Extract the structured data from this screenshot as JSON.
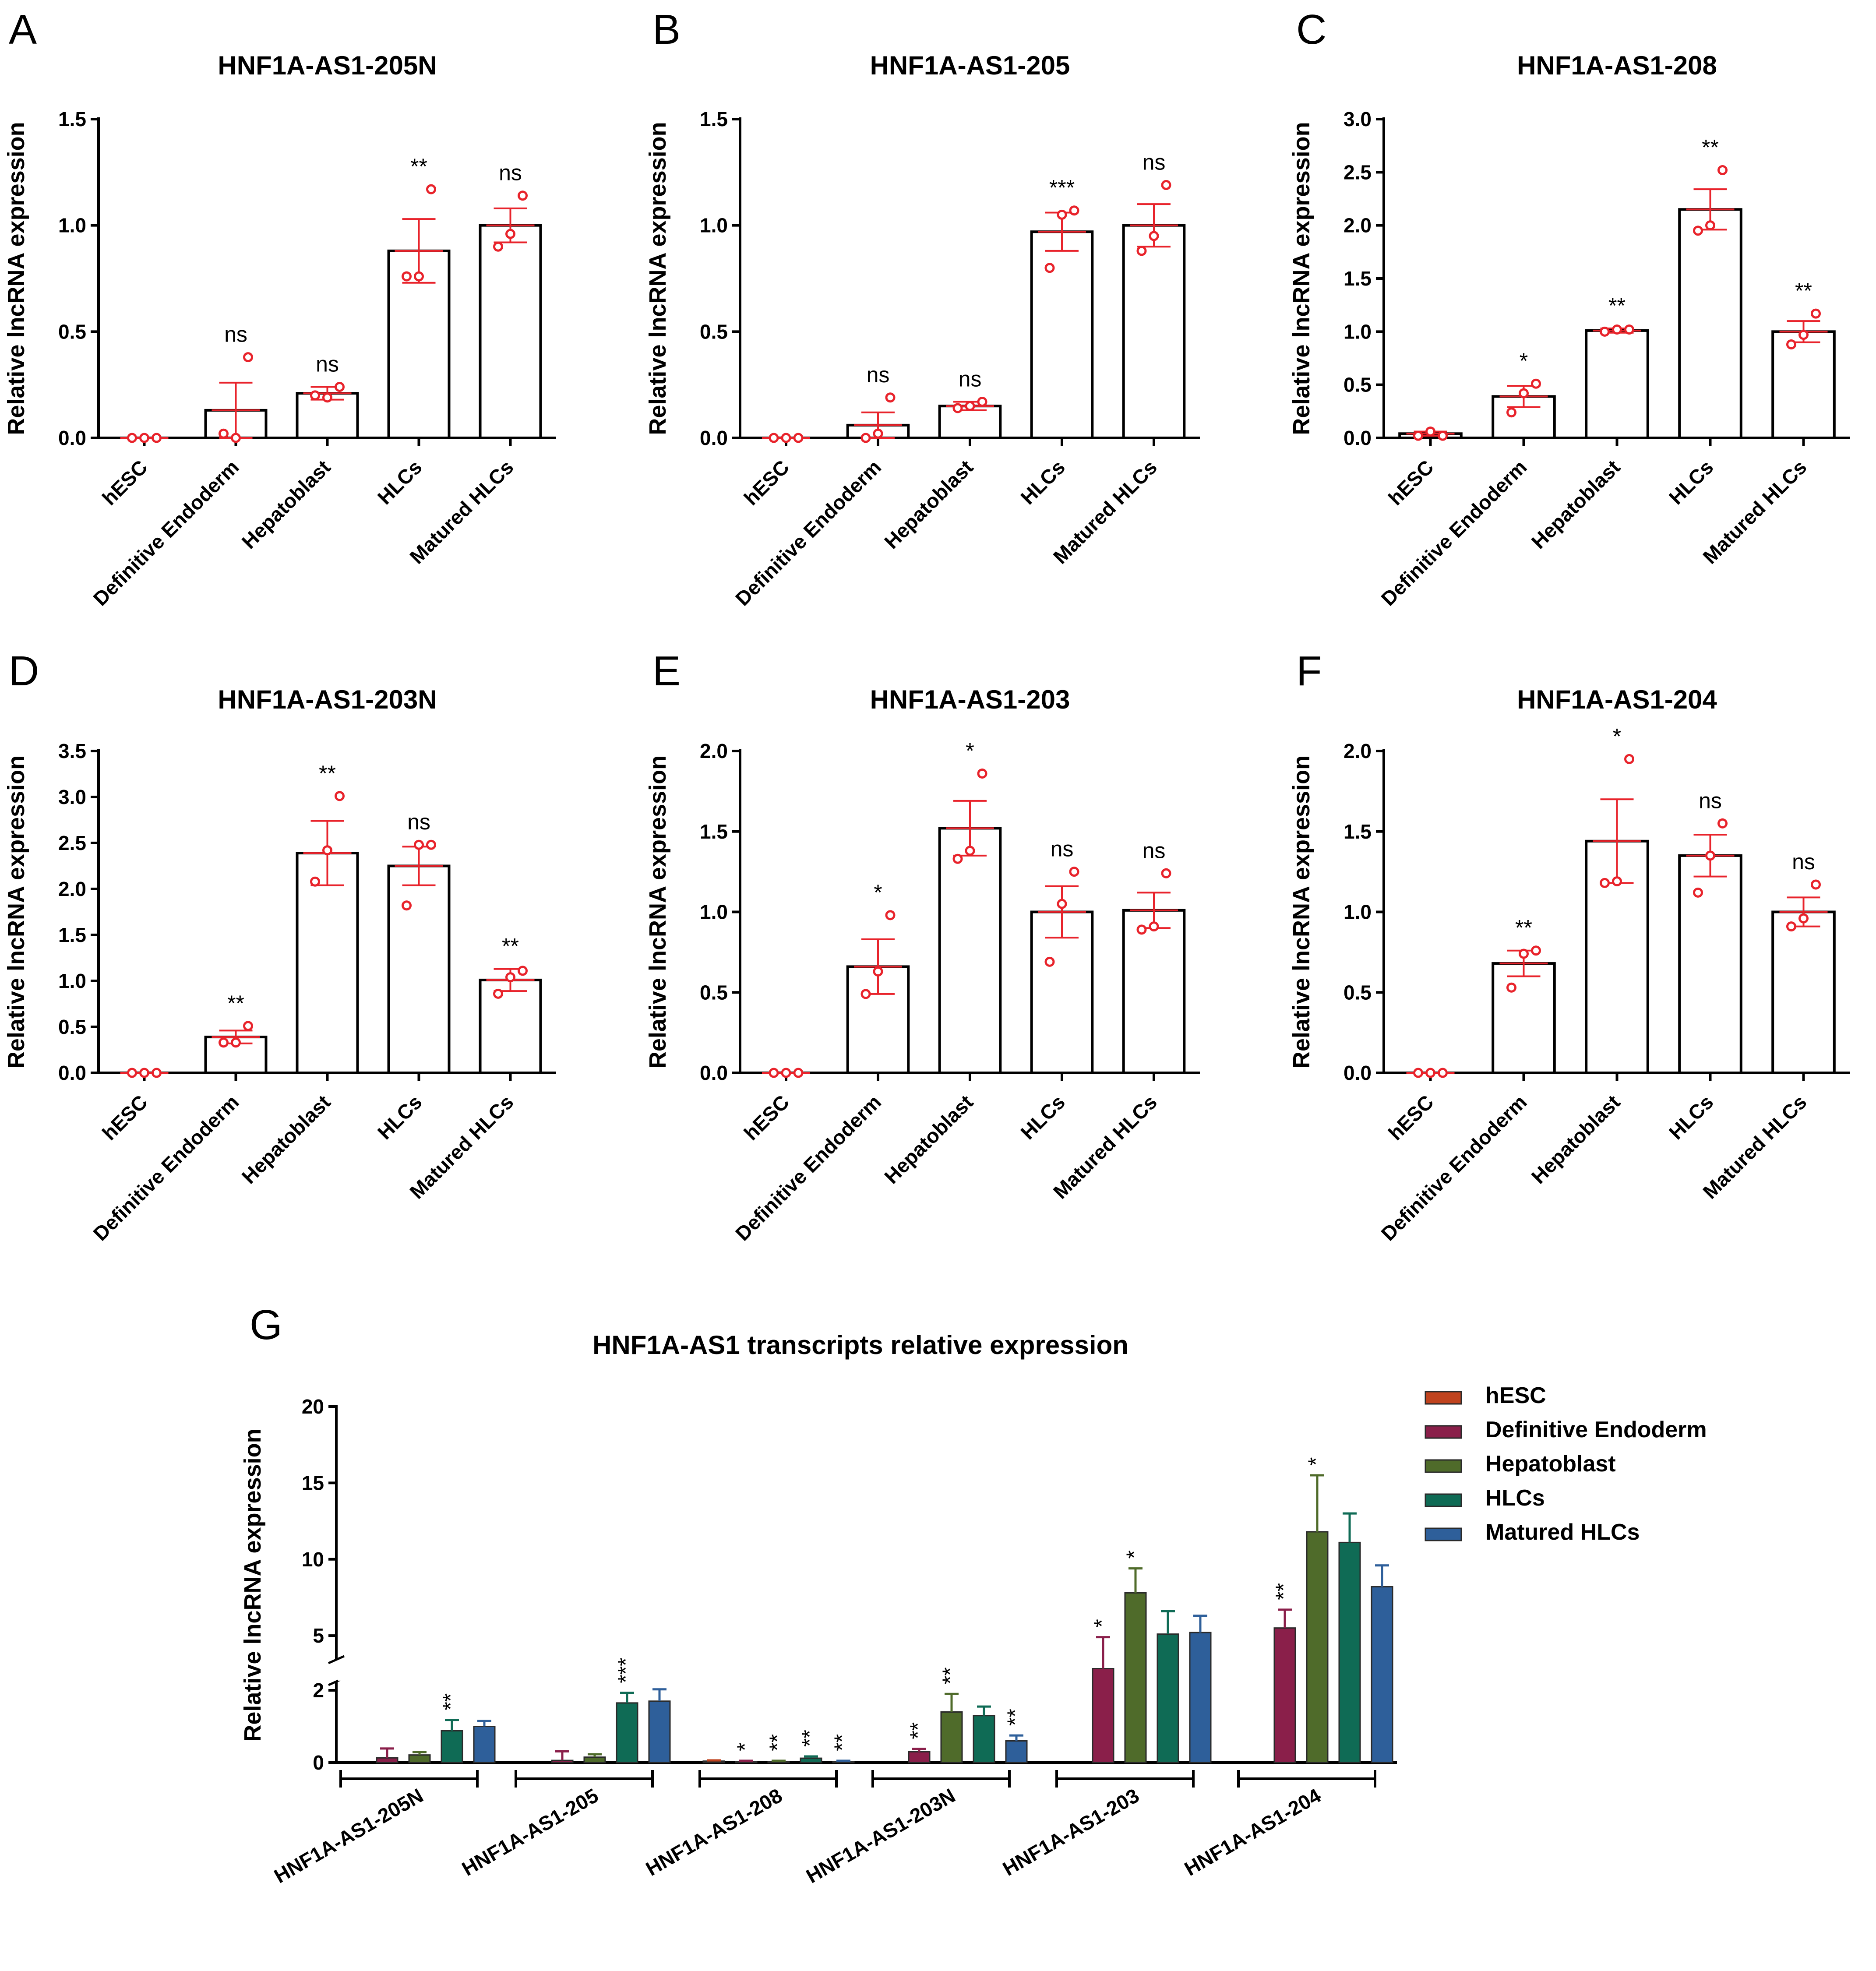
{
  "figure": {
    "panels": [
      "A",
      "B",
      "C",
      "D",
      "E",
      "F",
      "G"
    ]
  },
  "colors": {
    "axis": "#000000",
    "points": "#e8232b",
    "bar_stroke": "#000000",
    "hESC": "#c0431e",
    "Definitive Endoderm": "#8a1f4a",
    "Hepatoblast": "#4f6b2a",
    "HLCs": "#0f6b55",
    "Matured HLCs": "#2e5f9a"
  },
  "chart_data": [
    {
      "panel": "A",
      "type": "bar",
      "title": "HNF1A-AS1-205N",
      "ylabel": "Relative lncRNA expression",
      "xlabel": "",
      "ylim": [
        0,
        1.5
      ],
      "yticks": [
        "0.0",
        "0.5",
        "1.0",
        "1.5"
      ],
      "categories": [
        "hESC",
        "Definitive Endoderm",
        "Hepatoblast",
        "HLCs",
        "Matured HLCs"
      ],
      "values": [
        0.0,
        0.13,
        0.21,
        0.88,
        1.0
      ],
      "errors": [
        0.0,
        0.13,
        0.03,
        0.15,
        0.08
      ],
      "points": [
        [
          0.0,
          0.0,
          0.0
        ],
        [
          0.02,
          0.0,
          0.38
        ],
        [
          0.2,
          0.19,
          0.24
        ],
        [
          0.76,
          0.76,
          1.17
        ],
        [
          0.9,
          0.96,
          1.14
        ]
      ],
      "significance": [
        "",
        "ns",
        "ns",
        "**",
        "ns"
      ]
    },
    {
      "panel": "B",
      "type": "bar",
      "title": "HNF1A-AS1-205",
      "ylabel": "Relative lncRNA expression",
      "xlabel": "",
      "ylim": [
        0,
        1.5
      ],
      "yticks": [
        "0.0",
        "0.5",
        "1.0",
        "1.5"
      ],
      "categories": [
        "hESC",
        "Definitive Endoderm",
        "Hepatoblast",
        "HLCs",
        "Matured HLCs"
      ],
      "values": [
        0.0,
        0.06,
        0.15,
        0.97,
        1.0
      ],
      "errors": [
        0.0,
        0.06,
        0.02,
        0.09,
        0.1
      ],
      "points": [
        [
          0.0,
          0.0,
          0.0
        ],
        [
          0.0,
          0.02,
          0.19
        ],
        [
          0.14,
          0.15,
          0.17
        ],
        [
          0.8,
          1.05,
          1.07
        ],
        [
          0.88,
          0.95,
          1.19
        ]
      ],
      "significance": [
        "",
        "ns",
        "ns",
        "***",
        "ns"
      ]
    },
    {
      "panel": "C",
      "type": "bar",
      "title": "HNF1A-AS1-208",
      "ylabel": "Relative lncRNA expression",
      "xlabel": "",
      "ylim": [
        0,
        3.0
      ],
      "yticks": [
        "0.0",
        "0.5",
        "1.0",
        "1.5",
        "2.0",
        "2.5",
        "3.0"
      ],
      "categories": [
        "hESC",
        "Definitive Endoderm",
        "Hepatoblast",
        "HLCs",
        "Matured HLCs"
      ],
      "values": [
        0.04,
        0.39,
        1.01,
        2.15,
        1.0
      ],
      "errors": [
        0.02,
        0.1,
        0.02,
        0.19,
        0.1
      ],
      "points": [
        [
          0.02,
          0.06,
          0.02
        ],
        [
          0.24,
          0.42,
          0.51
        ],
        [
          1.0,
          1.02,
          1.02
        ],
        [
          1.95,
          2.0,
          2.52
        ],
        [
          0.88,
          0.97,
          1.17
        ]
      ],
      "significance": [
        "",
        "*",
        "**",
        "**",
        "**"
      ]
    },
    {
      "panel": "D",
      "type": "bar",
      "title": "HNF1A-AS1-203N",
      "ylabel": "Relative lncRNA expression",
      "xlabel": "",
      "ylim": [
        0,
        3.5
      ],
      "yticks": [
        "0.0",
        "0.5",
        "1.0",
        "1.5",
        "2.0",
        "2.5",
        "3.0",
        "3.5"
      ],
      "categories": [
        "hESC",
        "Definitive Endoderm",
        "Hepatoblast",
        "HLCs",
        "Matured HLCs"
      ],
      "values": [
        0.0,
        0.39,
        2.39,
        2.25,
        1.01
      ],
      "errors": [
        0.0,
        0.07,
        0.35,
        0.21,
        0.12
      ],
      "points": [
        [
          0.0,
          0.0,
          0.0
        ],
        [
          0.33,
          0.33,
          0.51
        ],
        [
          2.08,
          2.42,
          3.01
        ],
        [
          1.82,
          2.48,
          2.48
        ],
        [
          0.86,
          1.04,
          1.11
        ]
      ],
      "significance": [
        "",
        "**",
        "**",
        "ns",
        "**"
      ]
    },
    {
      "panel": "E",
      "type": "bar",
      "title": "HNF1A-AS1-203",
      "ylabel": "Relative lncRNA expression",
      "xlabel": "",
      "ylim": [
        0,
        2.0
      ],
      "yticks": [
        "0.0",
        "0.5",
        "1.0",
        "1.5",
        "2.0"
      ],
      "categories": [
        "hESC",
        "Definitive Endoderm",
        "Hepatoblast",
        "HLCs",
        "Matured HLCs"
      ],
      "values": [
        0.0,
        0.66,
        1.52,
        1.0,
        1.01
      ],
      "errors": [
        0.0,
        0.17,
        0.17,
        0.16,
        0.11
      ],
      "points": [
        [
          0.0,
          0.0,
          0.0
        ],
        [
          0.49,
          0.63,
          0.98
        ],
        [
          1.33,
          1.38,
          1.86
        ],
        [
          0.69,
          1.05,
          1.25
        ],
        [
          0.89,
          0.91,
          1.24
        ]
      ],
      "significance": [
        "",
        "*",
        "*",
        "ns",
        "ns"
      ]
    },
    {
      "panel": "F",
      "type": "bar",
      "title": "HNF1A-AS1-204",
      "ylabel": "Relative lncRNA expression",
      "xlabel": "",
      "ylim": [
        0,
        2.0
      ],
      "yticks": [
        "0.0",
        "0.5",
        "1.0",
        "1.5",
        "2.0"
      ],
      "categories": [
        "hESC",
        "Definitive Endoderm",
        "Hepatoblast",
        "HLCs",
        "Matured HLCs"
      ],
      "values": [
        0.0,
        0.68,
        1.44,
        1.35,
        1.0
      ],
      "errors": [
        0.0,
        0.08,
        0.26,
        0.13,
        0.09
      ],
      "points": [
        [
          0.0,
          0.0,
          0.0
        ],
        [
          0.53,
          0.74,
          0.76
        ],
        [
          1.18,
          1.19,
          1.95
        ],
        [
          1.12,
          1.35,
          1.55
        ],
        [
          0.91,
          0.96,
          1.17
        ]
      ],
      "significance": [
        "",
        "**",
        "*",
        "ns",
        "ns"
      ]
    },
    {
      "panel": "G",
      "type": "bar",
      "title": "HNF1A-AS1 transcripts relative expression",
      "ylabel": "Relative lncRNA expression",
      "xlabel": "",
      "ylim": [
        0,
        20
      ],
      "axis_break": [
        2,
        4
      ],
      "yticks": [
        "0",
        "2",
        "5",
        "10",
        "15",
        "20"
      ],
      "categories": [
        "HNF1A-AS1-205N",
        "HNF1A-AS1-205",
        "HNF1A-AS1-208",
        "HNF1A-AS1-203N",
        "HNF1A-AS1-203",
        "HNF1A-AS1-204"
      ],
      "legend": [
        "hESC",
        "Definitive Endoderm",
        "Hepatoblast",
        "HLCs",
        "Matured HLCs"
      ],
      "legend_position": "top-right",
      "series": [
        {
          "name": "hESC",
          "values": [
            0.0,
            0.0,
            0.04,
            0.0,
            0.0,
            0.0
          ],
          "errors": [
            0.0,
            0.0,
            0.02,
            0.0,
            0.0,
            0.0
          ]
        },
        {
          "name": "Definitive Endoderm",
          "values": [
            0.13,
            0.06,
            0.02,
            0.3,
            3.1,
            5.5
          ],
          "errors": [
            0.26,
            0.25,
            0.03,
            0.08,
            1.8,
            1.2
          ]
        },
        {
          "name": "Hepatoblast",
          "values": [
            0.21,
            0.15,
            0.03,
            1.4,
            7.8,
            11.8
          ],
          "errors": [
            0.08,
            0.08,
            0.02,
            0.5,
            1.6,
            3.7
          ]
        },
        {
          "name": "HLCs",
          "values": [
            0.88,
            1.65,
            0.12,
            1.3,
            5.1,
            11.1
          ],
          "errors": [
            0.3,
            0.28,
            0.05,
            0.25,
            1.5,
            1.9
          ]
        },
        {
          "name": "Matured HLCs",
          "values": [
            1.0,
            1.7,
            0.03,
            0.6,
            5.2,
            8.2
          ],
          "errors": [
            0.15,
            0.35,
            0.02,
            0.15,
            1.1,
            1.4
          ]
        }
      ],
      "significance": [
        [
          "",
          "",
          "",
          "**",
          ""
        ],
        [
          "",
          "",
          "",
          "***",
          ""
        ],
        [
          "",
          "*",
          "**",
          "**",
          "**"
        ],
        [
          "",
          "**",
          "**",
          "",
          "**"
        ],
        [
          "",
          "*",
          "*",
          "",
          ""
        ],
        [
          "",
          "**",
          "*",
          "",
          ""
        ]
      ]
    }
  ]
}
